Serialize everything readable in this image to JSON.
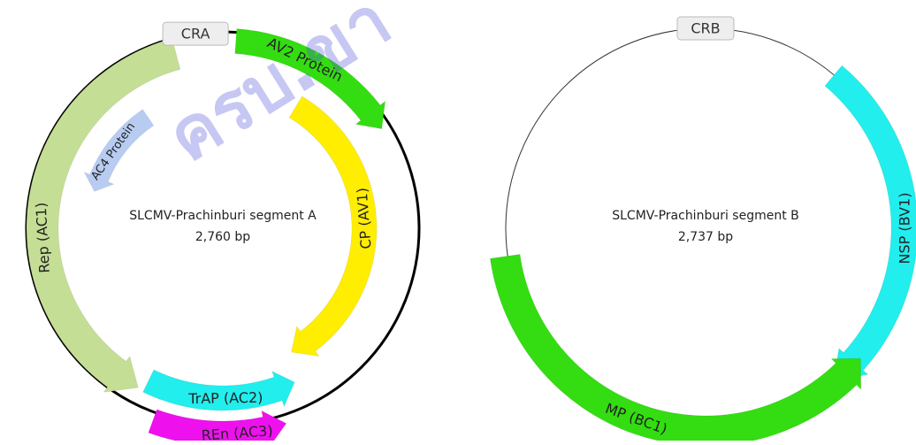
{
  "watermark": "ครบ.ขา",
  "plasmids": [
    {
      "id": "segment-a",
      "title": "SLCMV-Prachinburi segment A",
      "size": "2,760 bp",
      "backbone_color": "#000000",
      "origin": {
        "label": "CRA"
      },
      "features": [
        {
          "id": "av2",
          "label": "AV2 Protein",
          "color": "#33dd11",
          "strand": "forward"
        },
        {
          "id": "cp",
          "label": "CP (AV1)",
          "color": "#ffee00",
          "strand": "forward"
        },
        {
          "id": "ren",
          "label": "REn (AC3)",
          "color": "#ee11ee",
          "strand": "reverse"
        },
        {
          "id": "trap",
          "label": "TrAP (AC2)",
          "color": "#22eeee",
          "strand": "reverse"
        },
        {
          "id": "rep",
          "label": "Rep (AC1)",
          "color": "#c5de95",
          "strand": "reverse"
        },
        {
          "id": "ac4",
          "label": "AC4 Protein",
          "color": "#b8ccf2",
          "strand": "reverse"
        }
      ]
    },
    {
      "id": "segment-b",
      "title": "SLCMV-Prachinburi segment B",
      "size": "2,737 bp",
      "backbone_color": "#333333",
      "origin": {
        "label": "CRB"
      },
      "features": [
        {
          "id": "nsp",
          "label": "NSP (BV1)",
          "color": "#22eeee",
          "strand": "forward"
        },
        {
          "id": "mp",
          "label": "MP (BC1)",
          "color": "#33dd11",
          "strand": "reverse"
        }
      ]
    }
  ]
}
